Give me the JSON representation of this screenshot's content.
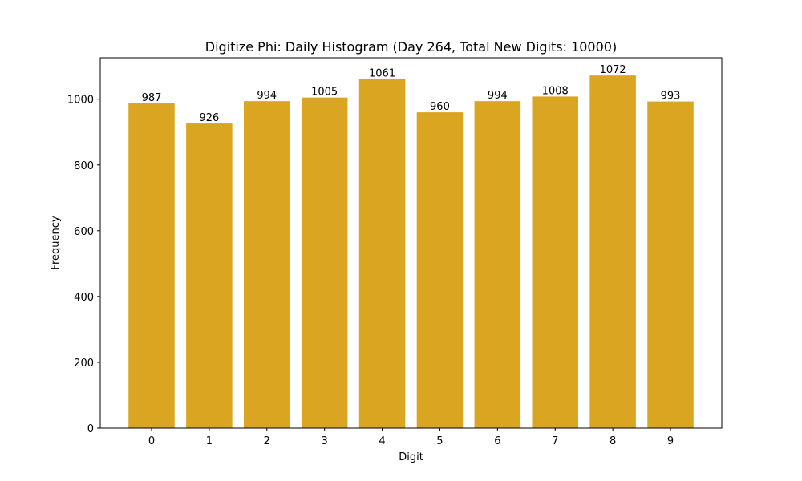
{
  "chart_data": {
    "type": "bar",
    "title": "Digitize Phi: Daily Histogram (Day 264, Total New Digits: 10000)",
    "xlabel": "Digit",
    "ylabel": "Frequency",
    "categories": [
      "0",
      "1",
      "2",
      "3",
      "4",
      "5",
      "6",
      "7",
      "8",
      "9"
    ],
    "values": [
      987,
      926,
      994,
      1005,
      1061,
      960,
      994,
      1008,
      1072,
      993
    ],
    "bar_labels": [
      "987",
      "926",
      "994",
      "1005",
      "1061",
      "960",
      "994",
      "1008",
      "1072",
      "993"
    ],
    "ylim": [
      0,
      1126
    ],
    "yticks": [
      0,
      200,
      400,
      600,
      800,
      1000
    ],
    "grid": false,
    "legend": null,
    "bar_color": "#DAA520"
  }
}
